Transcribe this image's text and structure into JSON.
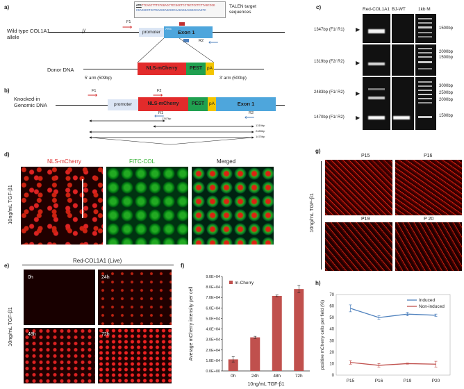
{
  "panels": {
    "a": {
      "letter": "a)",
      "seq_line1_prefix": "ATG",
      "seq_line1_rest": "TTCAGCTTTGTGGACCTCCGGCTCCTGCTCCTCTTAGCCGG",
      "seq_line2": "CCACGCCTCCTGACGCAGCGCCAAGAGGAAGGCCAAGTC",
      "talen_label": "TALEN target sequences",
      "allele_label": "Wild type COL1A1 allele",
      "f1": "F1",
      "promoter": "promoter",
      "atg": "ATG",
      "exon1": "Exon 1",
      "r2": "R2",
      "donor_label": "Donor DNA",
      "nls_mcherry": "NLS-mCherry",
      "pest": "PEST",
      "pa": "pA",
      "arm5": "5' arm (509bp)",
      "arm3": "3' arm (500bp)"
    },
    "b": {
      "letter": "b)",
      "label_line1": "Knocked-in",
      "label_line2": "Genomic DNA",
      "f1": "F1",
      "f2": "F2",
      "r1": "R1",
      "r2": "R2",
      "promoter": "promoter",
      "nls_mcherry": "NLS-mCherry",
      "pest": "PEST",
      "pa": "pA",
      "exon1": "Exon 1",
      "sizes": [
        "1347bp",
        "1319bp",
        "2483bp",
        "1470bp"
      ]
    },
    "c": {
      "letter": "c)",
      "lanes": [
        "Red-COL1A1",
        "BJ-WT",
        "1kb M"
      ],
      "rows": [
        {
          "label": "1347bp (F1/ R1)",
          "markers": [
            "1500bp"
          ]
        },
        {
          "label": "1319bp (F2/ R2)",
          "markers": [
            "2000bp",
            "1500bp"
          ]
        },
        {
          "label": "2483bp (F1/ R2)",
          "markers": [
            "3000bp",
            "2500bp",
            "2000bp"
          ]
        },
        {
          "label": "1470bp (F1/ R2)",
          "markers": [
            "1500bp"
          ]
        }
      ]
    },
    "d": {
      "letter": "d)",
      "side_label": "10ng/mL TGF-β1",
      "titles": [
        "NLS-mCherry",
        "FITC-COL",
        "Merged"
      ],
      "title_colors": [
        "#e03030",
        "#30b030",
        "#222222"
      ]
    },
    "e": {
      "letter": "e)",
      "header": "Red-COL1A1 (Live)",
      "side_label": "10ng/mL TGF-β1",
      "times": [
        "0h",
        "24h",
        "48h",
        "72h"
      ]
    },
    "f": {
      "letter": "f)",
      "legend": "m-Cherry",
      "bar_color": "#c0504d"
    },
    "g": {
      "letter": "g)",
      "side_label": "10ng/mL TGF-β1",
      "passages": [
        "P15",
        "P16",
        "P19",
        "P 20"
      ]
    },
    "h": {
      "letter": "h)"
    }
  },
  "chart_data": [
    {
      "type": "bar",
      "categories": [
        "0h",
        "24h",
        "48h",
        "72h"
      ],
      "series": [
        {
          "name": "m-Cherry",
          "values": [
            11000,
            32000,
            71500,
            78000
          ],
          "errors": [
            2500,
            1000,
            800,
            3500
          ]
        }
      ],
      "xlabel": "10ng/mL TGF-β1",
      "ylabel": "Average mCherry intensity per cell",
      "ylim": [
        0,
        90000
      ],
      "yticks": [
        "0.0E+00",
        "1.0E+04",
        "2.0E+04",
        "3.0E+04",
        "4.0E+04",
        "5.0E+04",
        "6.0E+04",
        "7.0E+04",
        "8.0E+04",
        "9.0E+04"
      ],
      "colors": [
        "#c0504d"
      ]
    },
    {
      "type": "line",
      "categories": [
        "P15",
        "P16",
        "P19",
        "P20"
      ],
      "series": [
        {
          "name": "Induced",
          "values": [
            58,
            50,
            53,
            52
          ],
          "errors": [
            3,
            1.5,
            1.5,
            1
          ],
          "color": "#4f81bd"
        },
        {
          "name": "Non-induced",
          "values": [
            11,
            8.5,
            10,
            9.5
          ],
          "errors": [
            1.5,
            1.5,
            0.5,
            2.5
          ],
          "color": "#c0504d"
        }
      ],
      "xlabel": "",
      "ylabel": "positive mCherry cells per field (%)",
      "ylim": [
        0,
        70
      ],
      "yticks": [
        "0",
        "10",
        "20",
        "30",
        "40",
        "50",
        "60",
        "70"
      ],
      "legend": "top-right"
    }
  ]
}
